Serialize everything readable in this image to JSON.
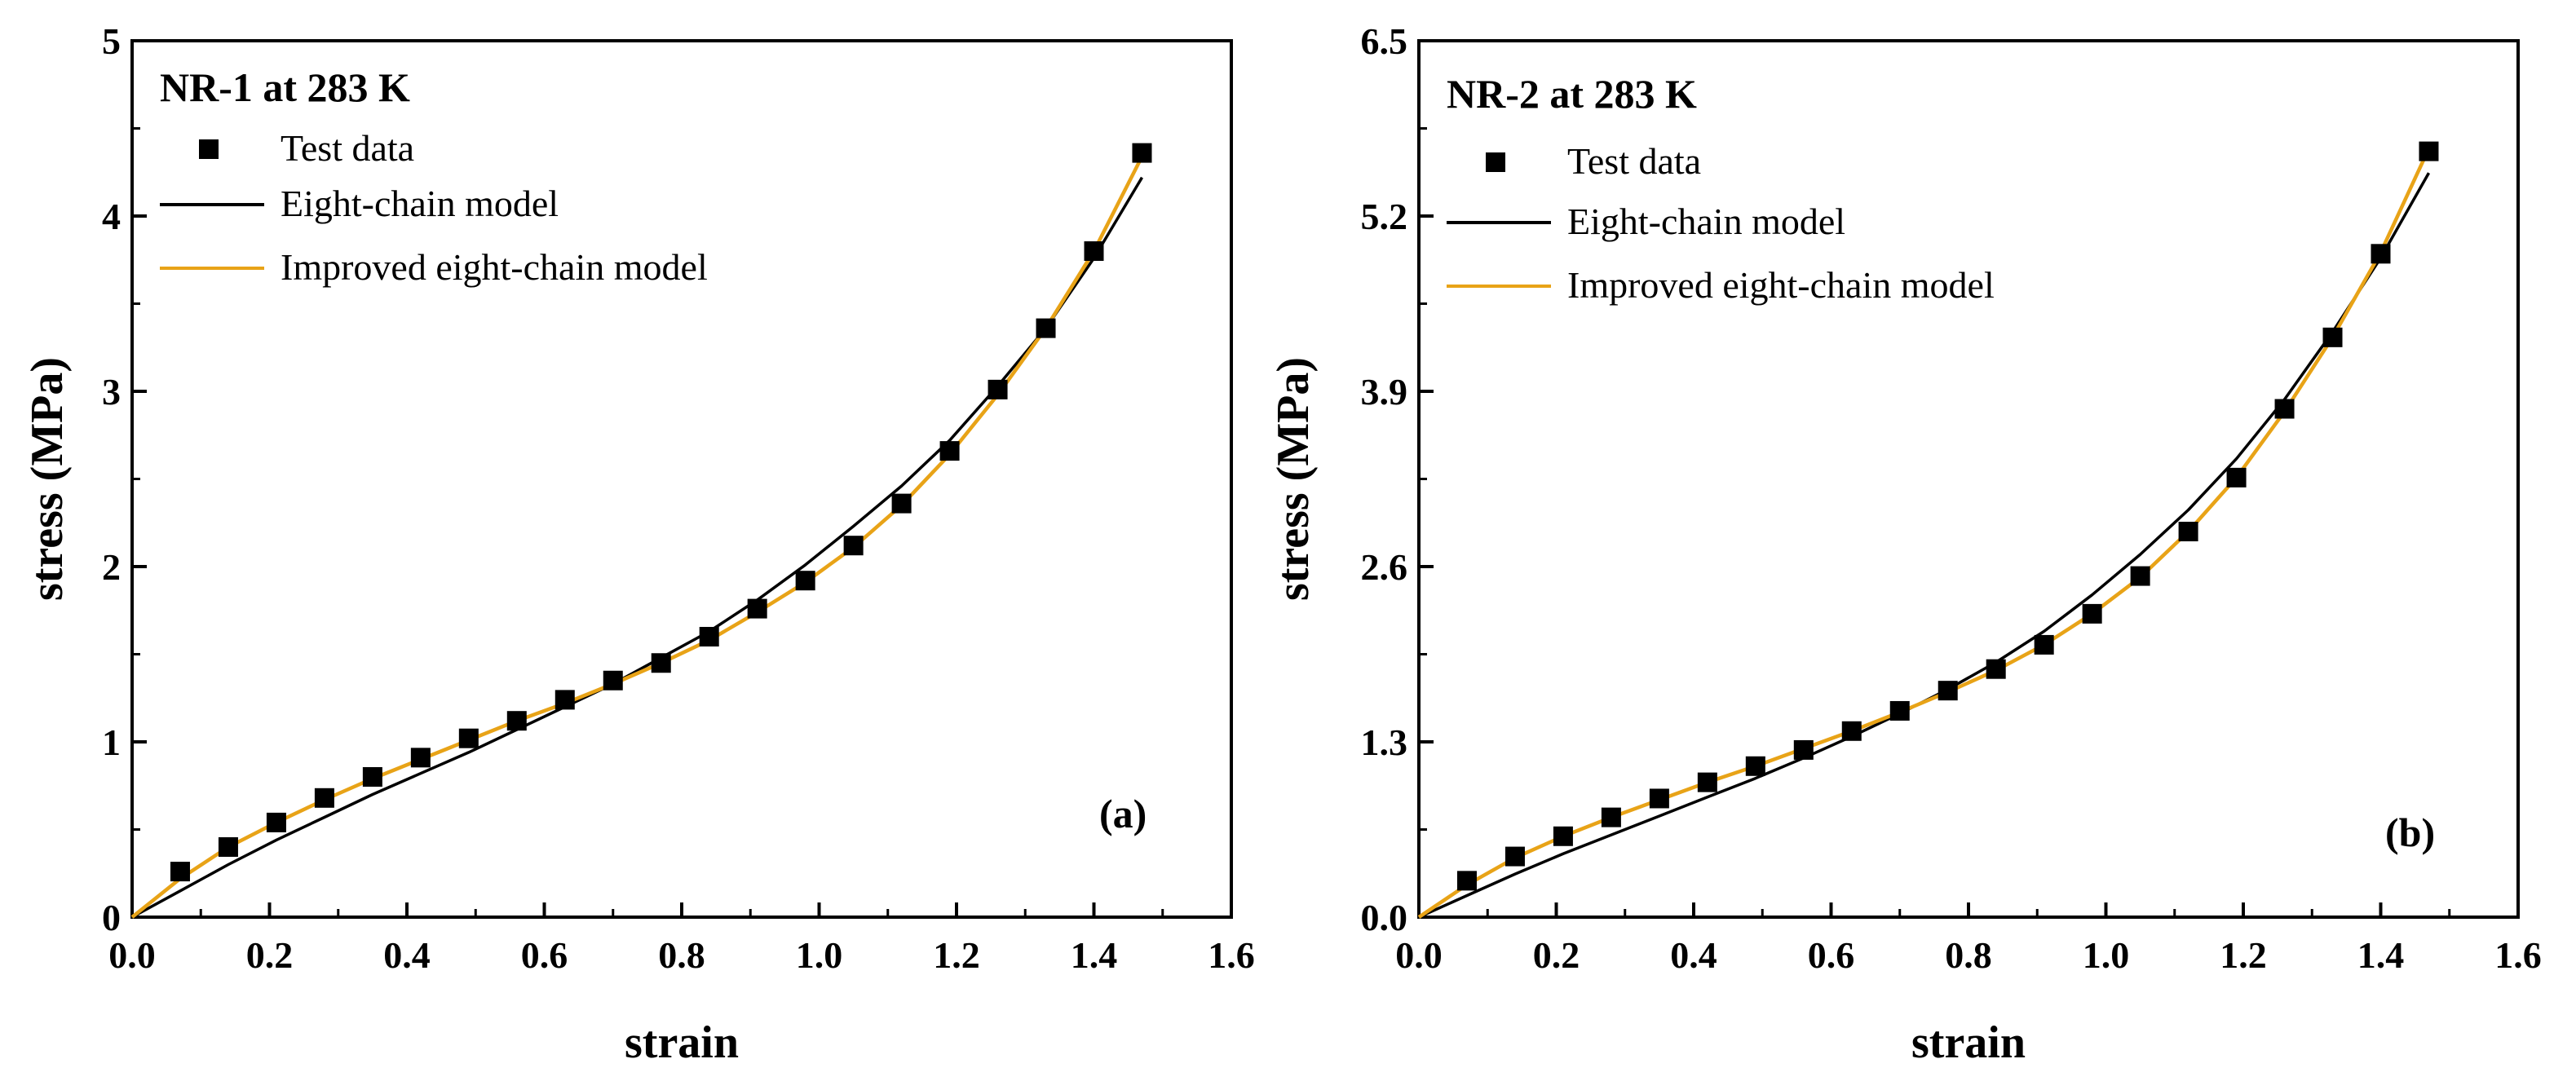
{
  "chart_data": [
    {
      "type": "line",
      "title": "NR-1 at 283 K",
      "panel_label": "(a)",
      "xlabel": "strain",
      "ylabel": "stress (MPa)",
      "xlim": [
        0,
        1.6
      ],
      "ylim": [
        0,
        5
      ],
      "xticks": [
        "0.0",
        "0.2",
        "0.4",
        "0.6",
        "0.8",
        "1.0",
        "1.2",
        "1.4",
        "1.6"
      ],
      "xtick_values": [
        0,
        0.2,
        0.4,
        0.6,
        0.8,
        1.0,
        1.2,
        1.4,
        1.6
      ],
      "yticks": [
        "0",
        "1",
        "2",
        "3",
        "4",
        "5"
      ],
      "ytick_values": [
        0,
        1,
        2,
        3,
        4,
        5
      ],
      "legend": [
        "Test data",
        "Eight-chain model",
        "Improved eight-chain model"
      ],
      "series": [
        {
          "name": "Test data",
          "style": "square-marker",
          "color": "#000000",
          "x": [
            0.07,
            0.14,
            0.21,
            0.28,
            0.35,
            0.42,
            0.49,
            0.56,
            0.63,
            0.7,
            0.77,
            0.84,
            0.91,
            0.98,
            1.05,
            1.12,
            1.19,
            1.26,
            1.33,
            1.4,
            1.47
          ],
          "y": [
            0.26,
            0.4,
            0.54,
            0.68,
            0.8,
            0.91,
            1.02,
            1.12,
            1.24,
            1.35,
            1.45,
            1.6,
            1.76,
            1.92,
            2.12,
            2.36,
            2.66,
            3.01,
            3.36,
            3.8,
            4.36
          ]
        },
        {
          "name": "Eight-chain model",
          "style": "line",
          "color": "#000000",
          "x": [
            0,
            0.07,
            0.14,
            0.21,
            0.28,
            0.35,
            0.42,
            0.49,
            0.56,
            0.63,
            0.7,
            0.77,
            0.84,
            0.91,
            0.98,
            1.05,
            1.12,
            1.19,
            1.26,
            1.33,
            1.4,
            1.47
          ],
          "y": [
            0,
            0.15,
            0.3,
            0.44,
            0.57,
            0.7,
            0.82,
            0.94,
            1.07,
            1.2,
            1.33,
            1.48,
            1.63,
            1.81,
            2.01,
            2.23,
            2.46,
            2.72,
            3.03,
            3.36,
            3.76,
            4.22
          ]
        },
        {
          "name": "Improved eight-chain model",
          "style": "line",
          "color": "#E8A317",
          "x": [
            0,
            0.07,
            0.14,
            0.21,
            0.28,
            0.35,
            0.42,
            0.49,
            0.56,
            0.63,
            0.7,
            0.77,
            0.84,
            0.91,
            0.98,
            1.05,
            1.12,
            1.19,
            1.26,
            1.33,
            1.4,
            1.47
          ],
          "y": [
            0,
            0.22,
            0.4,
            0.54,
            0.67,
            0.79,
            0.9,
            1.01,
            1.12,
            1.22,
            1.33,
            1.45,
            1.58,
            1.74,
            1.91,
            2.11,
            2.35,
            2.64,
            2.98,
            3.36,
            3.8,
            4.34
          ]
        }
      ]
    },
    {
      "type": "line",
      "title": "NR-2 at 283 K",
      "panel_label": "(b)",
      "xlabel": "strain",
      "ylabel": "stress (MPa)",
      "xlim": [
        0,
        1.6
      ],
      "ylim": [
        0,
        6.5
      ],
      "xticks": [
        "0.0",
        "0.2",
        "0.4",
        "0.6",
        "0.8",
        "1.0",
        "1.2",
        "1.4",
        "1.6"
      ],
      "xtick_values": [
        0,
        0.2,
        0.4,
        0.6,
        0.8,
        1.0,
        1.2,
        1.4,
        1.6
      ],
      "yticks": [
        "0.0",
        "1.3",
        "2.6",
        "3.9",
        "5.2",
        "6.5"
      ],
      "ytick_values": [
        0,
        1.3,
        2.6,
        3.9,
        5.2,
        6.5
      ],
      "legend": [
        "Test data",
        "Eight-chain model",
        "Improved eight-chain model"
      ],
      "series": [
        {
          "name": "Test data",
          "style": "square-marker",
          "color": "#000000",
          "x": [
            0.07,
            0.14,
            0.21,
            0.28,
            0.35,
            0.42,
            0.49,
            0.56,
            0.63,
            0.7,
            0.77,
            0.84,
            0.91,
            0.98,
            1.05,
            1.12,
            1.19,
            1.26,
            1.33,
            1.4,
            1.47
          ],
          "y": [
            0.27,
            0.45,
            0.6,
            0.74,
            0.88,
            1.0,
            1.12,
            1.24,
            1.38,
            1.53,
            1.68,
            1.84,
            2.02,
            2.25,
            2.53,
            2.86,
            3.26,
            3.77,
            4.3,
            4.92,
            5.68
          ]
        },
        {
          "name": "Eight-chain model",
          "style": "line",
          "color": "#000000",
          "x": [
            0,
            0.07,
            0.14,
            0.21,
            0.28,
            0.35,
            0.42,
            0.49,
            0.56,
            0.63,
            0.7,
            0.77,
            0.84,
            0.91,
            0.98,
            1.05,
            1.12,
            1.19,
            1.26,
            1.33,
            1.4,
            1.47
          ],
          "y": [
            0,
            0.16,
            0.32,
            0.47,
            0.61,
            0.75,
            0.89,
            1.03,
            1.18,
            1.34,
            1.51,
            1.69,
            1.89,
            2.12,
            2.39,
            2.69,
            3.02,
            3.4,
            3.84,
            4.34,
            4.89,
            5.52
          ]
        },
        {
          "name": "Improved eight-chain model",
          "style": "line",
          "color": "#E8A317",
          "x": [
            0,
            0.07,
            0.14,
            0.21,
            0.28,
            0.35,
            0.42,
            0.49,
            0.56,
            0.63,
            0.7,
            0.77,
            0.84,
            0.91,
            0.98,
            1.05,
            1.12,
            1.19,
            1.26,
            1.33,
            1.4,
            1.47
          ],
          "y": [
            0,
            0.24,
            0.44,
            0.6,
            0.74,
            0.87,
            1.0,
            1.12,
            1.25,
            1.38,
            1.52,
            1.67,
            1.83,
            2.02,
            2.25,
            2.52,
            2.86,
            3.26,
            3.75,
            4.3,
            4.93,
            5.7
          ]
        }
      ]
    }
  ]
}
